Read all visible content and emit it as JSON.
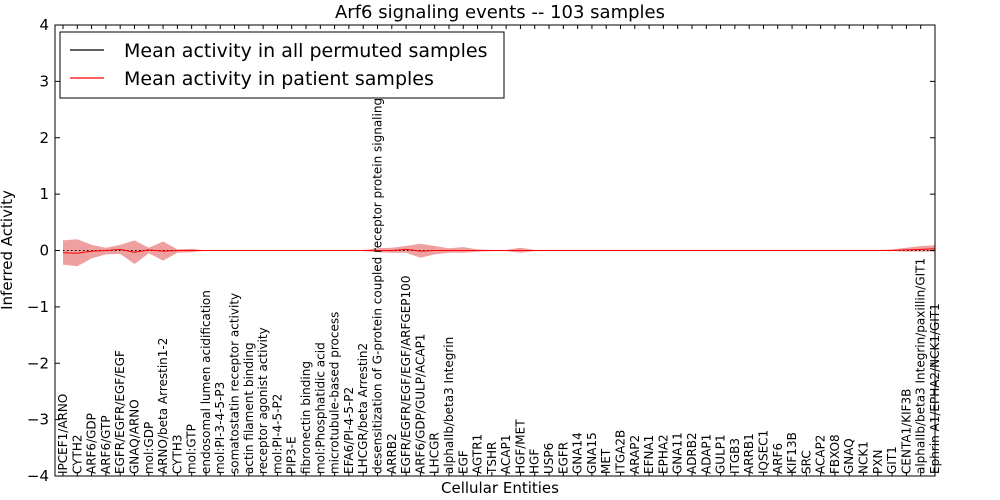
{
  "chart_data": {
    "type": "line",
    "title": "Arf6 signaling events -- 103 samples",
    "xlabel": "Cellular Entities",
    "ylabel": "Inferred Activity",
    "ylim": [
      -4,
      4
    ],
    "yticks": [
      -4,
      -3,
      -2,
      -1,
      0,
      1,
      2,
      3,
      4
    ],
    "grid": false,
    "legend_position": "top-left",
    "categories": [
      "IPCEF1/ARNO",
      "CYTH2",
      "ARF6/GDP",
      "ARF6/GTP",
      "EGFR/EGFR/EGF/EGF",
      "GNAQ/ARNO",
      "mol:GDP",
      "ARNO/beta Arrestin1-2",
      "CYTH3",
      "mol:GTP",
      "endosomal lumen acidification",
      "mol:PI-3-4-5-P3",
      "somatostatin receptor activity",
      "actin filament binding",
      "receptor agonist activity",
      "mol:PI-4-5-P2",
      "PIP3-E",
      "fibronectin binding",
      "mol:Phosphatidic acid",
      "microtubule-based process",
      "EFA6/PI-4-5-P2",
      "LHCGR/beta Arrestin2",
      "desensitization of G-protein coupled receptor protein signaling pathway",
      "ARRB2",
      "EGFR/EGFR/EGF/EGF/ARFGEP100",
      "ARF6/GDP/GULP/ACAP1",
      "LHCGR",
      "alphaIIb/beta3 Integrin",
      "EGF",
      "AGTR1",
      "TSHR",
      "ACAP1",
      "HGF/MET",
      "HGF",
      "USP6",
      "EGFR",
      "GNA14",
      "GNA15",
      "MET",
      "ITGA2B",
      "ARAP2",
      "EFNA1",
      "EPHA2",
      "GNA11",
      "ADRB2",
      "ADAP1",
      "GULP1",
      "ITGB3",
      "ARRB1",
      "IQSEC1",
      "ARF6",
      "KIF13B",
      "SRC",
      "ACAP2",
      "FBXO8",
      "GNAQ",
      "NCK1",
      "PXN",
      "GIT1",
      "CENTA1/KIF3B",
      "alphaIIb/beta3 Integrin/paxillin/GIT1",
      "Ephrin A1/EPHA2/NCK1/GIT1"
    ],
    "series": [
      {
        "name": "Mean activity in all permuted samples",
        "color": "#000000",
        "style": "dotted",
        "values": [
          0,
          0,
          0,
          0,
          0,
          0,
          0,
          0,
          0,
          0,
          0,
          0,
          0,
          0,
          0,
          0,
          0,
          0,
          0,
          0,
          0,
          0,
          0,
          0,
          0,
          0,
          0,
          0,
          0,
          0,
          0,
          0,
          0,
          0,
          0,
          0,
          0,
          0,
          0,
          0,
          0,
          0,
          0,
          0,
          0,
          0,
          0,
          0,
          0,
          0,
          0,
          0,
          0,
          0,
          0,
          0,
          0,
          0,
          0,
          0,
          0,
          0
        ]
      },
      {
        "name": "Mean activity in patient samples",
        "color": "#ff0000",
        "style": "solid",
        "values": [
          -0.04,
          -0.05,
          -0.01,
          0.0,
          0.02,
          -0.03,
          0.01,
          -0.01,
          0.0,
          0.0,
          0,
          0,
          0,
          0,
          0,
          0,
          0,
          0,
          0,
          0,
          0,
          0,
          0,
          0,
          0.02,
          -0.01,
          0.0,
          0.0,
          0,
          0,
          0,
          0,
          0.0,
          0,
          0,
          0,
          0,
          0,
          0,
          0,
          0,
          0,
          0,
          0,
          0,
          0,
          0,
          0,
          0,
          0,
          0,
          0,
          0,
          0,
          0,
          0,
          0,
          0,
          0,
          0.01,
          0.02,
          0.03
        ],
        "band_upper": [
          0.18,
          0.2,
          0.1,
          0.05,
          0.1,
          0.18,
          0.05,
          0.16,
          0.02,
          0.03,
          0,
          0,
          0,
          0,
          0,
          0,
          0,
          0,
          0,
          0,
          0,
          0.01,
          0.04,
          0.05,
          0.08,
          0.12,
          0.08,
          0.04,
          0.06,
          0.02,
          0.01,
          0.01,
          0.05,
          0.01,
          0.01,
          0.01,
          0.01,
          0.01,
          0.01,
          0.01,
          0.01,
          0.01,
          0.01,
          0.01,
          0.01,
          0.01,
          0.01,
          0.01,
          0.01,
          0.01,
          0.01,
          0.01,
          0.01,
          0.01,
          0.01,
          0.01,
          0.01,
          0.01,
          0.02,
          0.05,
          0.08,
          0.09
        ],
        "band_lower": [
          -0.25,
          -0.28,
          -0.14,
          -0.07,
          -0.06,
          -0.24,
          -0.05,
          -0.18,
          -0.04,
          -0.03,
          0,
          0,
          0,
          0,
          0,
          0,
          0,
          0,
          0,
          0,
          0,
          -0.01,
          -0.03,
          -0.04,
          -0.04,
          -0.13,
          -0.07,
          -0.04,
          -0.04,
          -0.02,
          -0.01,
          -0.01,
          -0.04,
          -0.01,
          -0.01,
          -0.01,
          -0.01,
          -0.01,
          -0.01,
          -0.01,
          -0.01,
          -0.01,
          -0.01,
          -0.01,
          -0.01,
          -0.01,
          -0.01,
          -0.01,
          -0.01,
          -0.01,
          -0.01,
          -0.01,
          -0.01,
          -0.01,
          -0.01,
          -0.01,
          -0.01,
          -0.01,
          -0.01,
          -0.02,
          -0.02,
          -0.02
        ],
        "band_color": "#e88080"
      }
    ]
  }
}
